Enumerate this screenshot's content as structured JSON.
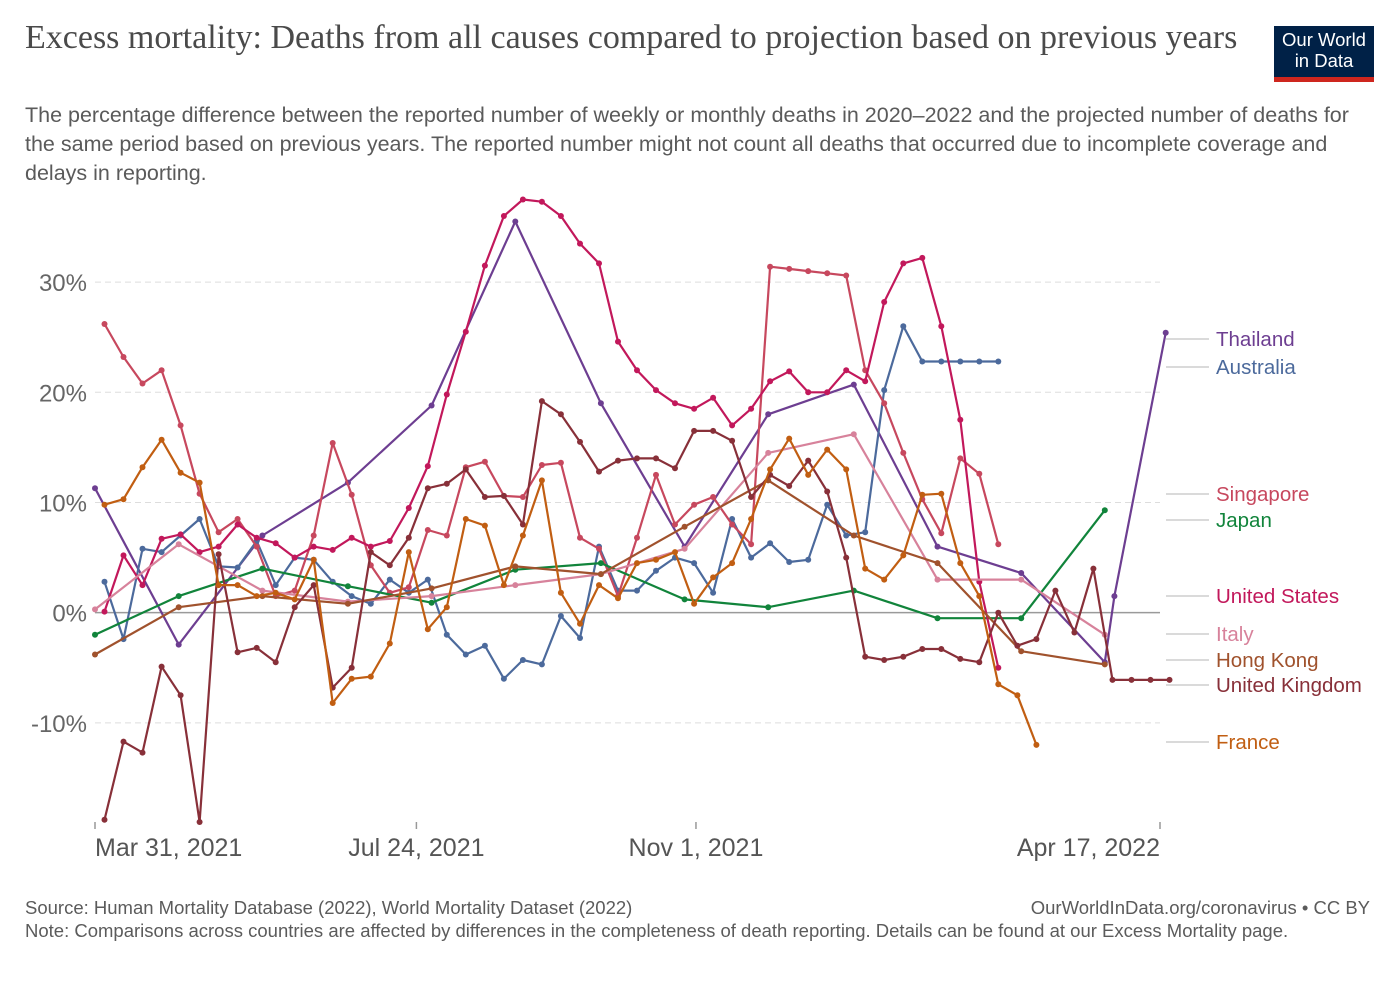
{
  "title": "Excess mortality: Deaths from all causes compared to projection based on previous years",
  "subtitle": "The percentage difference between the reported number of weekly or monthly deaths in 2020–2022 and the projected number of deaths for the same period based on previous years. The reported number might not count all deaths that occurred due to incomplete coverage and delays in reporting.",
  "logo": {
    "line1": "Our World",
    "line2": "in Data",
    "bg": "#002147",
    "accent": "#ce261e"
  },
  "source": "Source: Human Mortality Database (2022), World Mortality Dataset (2022)",
  "credit": "OurWorldInData.org/coronavirus • CC BY",
  "note": "Note: Comparisons across countries are affected by differences in the completeness of death reporting. Details can be found at our Excess Mortality page.",
  "chart_data": {
    "type": "line",
    "title": "Excess mortality: Deaths from all causes compared to projection based on previous years",
    "ylabel": "",
    "xlabel": "",
    "x_domain": [
      0,
      56
    ],
    "ylim": [
      -19,
      37
    ],
    "y_ticks": [
      {
        "value": -10,
        "label": "-10%"
      },
      {
        "value": 0,
        "label": "0%"
      },
      {
        "value": 10,
        "label": "10%"
      },
      {
        "value": 20,
        "label": "20%"
      },
      {
        "value": 30,
        "label": "30%"
      }
    ],
    "x_ticks": [
      {
        "value": 0,
        "label": "Mar 31, 2021"
      },
      {
        "value": 16.9,
        "label": "Jul 24, 2021"
      },
      {
        "value": 31.6,
        "label": "Nov 1, 2021"
      },
      {
        "value": 56,
        "label": "Apr 17, 2022"
      }
    ],
    "grid": true,
    "series": [
      {
        "name": "Thailand",
        "color": "#6d3e91",
        "label_y": 25.4,
        "x": [
          0,
          4.4,
          8.8,
          13.3,
          17.7,
          22.1,
          26.6,
          31,
          35.4,
          39.9,
          44.3,
          48.7,
          53.1,
          53.6,
          56.3
        ],
        "y": [
          11.3,
          -2.9,
          7,
          11.8,
          18.8,
          35.5,
          19,
          6,
          18,
          20.7,
          6,
          3.6,
          -4.5,
          1.5,
          25.4
        ]
      },
      {
        "name": "Australia",
        "color": "#4c6a9c",
        "x": [
          0.5,
          1.5,
          2.5,
          3.5,
          4.5,
          5.5,
          6.5,
          7.5,
          8.5,
          9.5,
          10.5,
          11.5,
          12.5,
          13.5,
          14.5,
          15.5,
          16.5,
          17.5,
          18.5,
          19.5,
          20.5,
          21.5,
          22.5,
          23.5,
          24.5,
          25.5,
          26.5,
          27.5,
          28.5,
          29.5,
          30.5,
          31.5,
          32.5,
          33.5,
          34.5,
          35.5,
          36.5,
          37.5,
          38.5,
          39.5,
          40.5,
          41.5,
          42.5,
          43.5,
          44.5,
          45.5,
          46.5,
          47.5
        ],
        "y": [
          2.8,
          -2.4,
          5.8,
          5.5,
          7,
          8.5,
          4.2,
          4.1,
          6.5,
          2.5,
          5,
          4.8,
          2.8,
          1.5,
          0.8,
          3,
          1.8,
          3,
          -2,
          -3.8,
          -3,
          -6,
          -4.3,
          -4.7,
          -0.3,
          -2.3,
          6,
          2,
          2,
          3.8,
          5,
          4.5,
          1.8,
          8.5,
          5,
          6.3,
          4.6,
          4.8,
          9.8,
          7,
          7.3,
          20.2,
          26,
          22.8,
          22.8,
          22.8,
          22.8,
          22.8
        ]
      },
      {
        "name": "Singapore",
        "color": "#c7485e",
        "label_y": 11.3,
        "x": [
          0.5,
          1.5,
          2.5,
          3.5,
          4.5,
          5.5,
          6.5,
          7.5,
          8.5,
          9.5,
          10.5,
          11.5,
          12.5,
          13.5,
          14.5,
          15.5,
          16.5,
          17.5,
          18.5,
          19.5,
          20.5,
          21.5,
          22.5,
          23.5,
          24.5,
          25.5,
          26.5,
          27.5,
          28.5,
          29.5,
          30.5,
          31.5,
          32.5,
          33.5,
          34.5,
          35.5,
          36.5,
          37.5,
          38.5,
          39.5,
          40.5,
          41.5,
          42.5,
          43.5,
          44.5,
          45.5,
          46.5,
          47.5
        ],
        "y": [
          26.2,
          23.2,
          20.8,
          22,
          17,
          10.8,
          7.3,
          8.5,
          6,
          1.5,
          2,
          7,
          15.4,
          10.7,
          4.3,
          1.8,
          2.3,
          7.5,
          7,
          13.2,
          13.7,
          10.6,
          10.5,
          13.4,
          13.6,
          6.8,
          5.8,
          1.5,
          6.8,
          12.5,
          8,
          9.8,
          10.5,
          8,
          6.2,
          31.4,
          31.2,
          31,
          30.8,
          30.6,
          22,
          19,
          14.5,
          10.3,
          7.2,
          14,
          12.6,
          6.2
        ]
      },
      {
        "name": "Japan",
        "color": "#11843b",
        "label_y": 9.3,
        "x": [
          0,
          4.4,
          8.8,
          13.3,
          17.7,
          22.1,
          26.6,
          31,
          35.4,
          39.9,
          44.3,
          48.7,
          53.1
        ],
        "y": [
          -2,
          1.5,
          4,
          2.4,
          0.9,
          3.9,
          4.5,
          1.2,
          0.5,
          2,
          -0.5,
          -0.5,
          9.3
        ]
      },
      {
        "name": "United States",
        "color": "#c2185b",
        "label_y": 1.5,
        "x": [
          0.5,
          1.5,
          2.5,
          3.5,
          4.5,
          5.5,
          6.5,
          7.5,
          8.5,
          9.5,
          10.5,
          11.5,
          12.5,
          13.5,
          14.5,
          15.5,
          16.5,
          17.5,
          18.5,
          19.5,
          20.5,
          21.5,
          22.5,
          23.5,
          24.5,
          25.5,
          26.5,
          27.5,
          28.5,
          29.5,
          30.5,
          31.5,
          32.5,
          33.5,
          34.5,
          35.5,
          36.5,
          37.5,
          38.5,
          39.5,
          40.5,
          41.5,
          42.5,
          43.5,
          44.5,
          45.5,
          46.5,
          47.5
        ],
        "y": [
          0.1,
          5.2,
          2.5,
          6.7,
          7.1,
          5.5,
          6,
          8,
          6.8,
          6.3,
          5,
          6,
          5.7,
          6.8,
          6,
          6.5,
          9.5,
          13.3,
          19.8,
          25.5,
          31.5,
          36,
          37.5,
          37.3,
          36,
          33.5,
          31.7,
          24.6,
          22,
          20.2,
          19,
          18.5,
          19.5,
          17,
          18.5,
          21,
          21.9,
          20,
          20,
          22,
          21,
          28.2,
          31.7,
          32.2,
          26,
          17.5,
          2.8,
          -5
        ]
      },
      {
        "name": "Italy",
        "color": "#d7829b",
        "label_y": -2.0,
        "x": [
          0,
          4.4,
          8.8,
          13.3,
          17.7,
          22.1,
          26.6,
          31,
          35.4,
          39.9,
          44.3,
          48.7,
          53.1
        ],
        "y": [
          0.3,
          6.2,
          2,
          1,
          1.5,
          2.5,
          3.5,
          5.8,
          14.5,
          16.2,
          3,
          3,
          -2
        ]
      },
      {
        "name": "Hong Kong",
        "color": "#a0522d",
        "label_y": -3.5,
        "x": [
          0,
          4.4,
          8.8,
          13.3,
          17.7,
          22.1,
          26.6,
          31,
          35.4,
          39.9,
          44.3,
          48.7,
          53.1
        ],
        "y": [
          -3.8,
          0.5,
          1.5,
          0.8,
          2.2,
          4.2,
          3.5,
          7.8,
          12,
          7,
          4.5,
          -3.5,
          -4.7
        ]
      },
      {
        "name": "United Kingdom",
        "color": "#883039",
        "label_y": -6.2,
        "x": [
          0.5,
          1.5,
          2.5,
          3.5,
          4.5,
          5.5,
          6.5,
          7.5,
          8.5,
          9.5,
          10.5,
          11.5,
          12.5,
          13.5,
          14.5,
          15.5,
          16.5,
          17.5,
          18.5,
          19.5,
          20.5,
          21.5,
          22.5,
          23.5,
          24.5,
          25.5,
          26.5,
          27.5,
          28.5,
          29.5,
          30.5,
          31.5,
          32.5,
          33.5,
          34.5,
          35.5,
          36.5,
          37.5,
          38.5,
          39.5,
          40.5,
          41.5,
          42.5,
          43.5,
          44.5,
          45.5,
          46.5,
          47.5,
          48.5,
          49.5,
          50.5,
          51.5,
          52.5,
          53.5,
          54.5,
          55.5,
          56.5
        ],
        "y": [
          -18.8,
          -11.7,
          -12.7,
          -4.9,
          -7.5,
          -19,
          5.3,
          -3.6,
          -3.2,
          -4.5,
          0.5,
          2.5,
          -6.8,
          -5,
          5.5,
          4.3,
          6.8,
          11.3,
          11.7,
          13,
          10.5,
          10.6,
          8,
          19.2,
          18,
          15.5,
          12.8,
          13.8,
          14,
          14,
          13.1,
          16.5,
          16.5,
          15.6,
          10.5,
          12.5,
          11.5,
          13.8,
          11,
          5,
          -4,
          -4.3,
          -4,
          -3.3,
          -3.3,
          -4.2,
          -4.5,
          0,
          -3,
          -2.4,
          2,
          -1.8,
          4,
          -6.1,
          -6.1,
          -6.1,
          -6.1
        ]
      },
      {
        "name": "France",
        "color": "#c15e12",
        "label_y": -12.0,
        "x": [
          0.5,
          1.5,
          2.5,
          3.5,
          4.5,
          5.5,
          6.5,
          7.5,
          8.5,
          9.5,
          10.5,
          11.5,
          12.5,
          13.5,
          14.5,
          15.5,
          16.5,
          17.5,
          18.5,
          19.5,
          20.5,
          21.5,
          22.5,
          23.5,
          24.5,
          25.5,
          26.5,
          27.5,
          28.5,
          29.5,
          30.5,
          31.5,
          32.5,
          33.5,
          34.5,
          35.5,
          36.5,
          37.5,
          38.5,
          39.5,
          40.5,
          41.5,
          42.5,
          43.5,
          44.5,
          45.5,
          46.5,
          47.5,
          48.5,
          49.5
        ],
        "y": [
          9.8,
          10.3,
          13.2,
          15.7,
          12.7,
          11.8,
          2.5,
          2.5,
          1.5,
          1.8,
          1.2,
          4.8,
          -8.2,
          -6,
          -5.8,
          -2.8,
          5.5,
          -1.5,
          0.5,
          8.5,
          7.9,
          2.5,
          7,
          12,
          1.8,
          -1,
          2.5,
          1.3,
          4.5,
          4.8,
          5.5,
          0.8,
          3.2,
          4.5,
          8.5,
          13,
          15.8,
          12.5,
          14.8,
          13,
          4,
          3,
          5.2,
          10.7,
          10.8,
          4.5,
          1.5,
          -6.5,
          -7.5,
          -12
        ]
      }
    ]
  }
}
